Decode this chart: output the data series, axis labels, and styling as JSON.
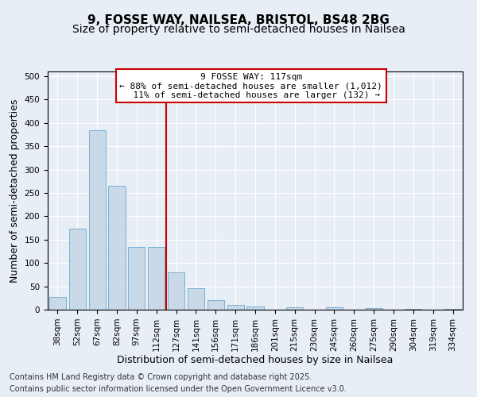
{
  "title_line1": "9, FOSSE WAY, NAILSEA, BRISTOL, BS48 2BG",
  "title_line2": "Size of property relative to semi-detached houses in Nailsea",
  "xlabel": "Distribution of semi-detached houses by size in Nailsea",
  "ylabel": "Number of semi-detached properties",
  "categories": [
    "38sqm",
    "52sqm",
    "67sqm",
    "82sqm",
    "97sqm",
    "112sqm",
    "127sqm",
    "141sqm",
    "156sqm",
    "171sqm",
    "186sqm",
    "201sqm",
    "215sqm",
    "230sqm",
    "245sqm",
    "260sqm",
    "275sqm",
    "290sqm",
    "304sqm",
    "319sqm",
    "334sqm"
  ],
  "values": [
    27,
    173,
    385,
    265,
    135,
    135,
    80,
    46,
    20,
    11,
    6,
    0,
    5,
    0,
    5,
    0,
    3,
    0,
    2,
    0,
    1
  ],
  "bar_color": "#c9d9e8",
  "bar_edge_color": "#7bafd4",
  "vline_x": 5.5,
  "vline_color": "#cc0000",
  "annotation_text": "9 FOSSE WAY: 117sqm\n← 88% of semi-detached houses are smaller (1,012)\n  11% of semi-detached houses are larger (132) →",
  "annotation_box_color": "#cc0000",
  "background_color": "#e8eef5",
  "plot_bg_color": "#e8eef5",
  "ylim": [
    0,
    510
  ],
  "yticks": [
    0,
    50,
    100,
    150,
    200,
    250,
    300,
    350,
    400,
    450,
    500
  ],
  "footer_line1": "Contains HM Land Registry data © Crown copyright and database right 2025.",
  "footer_line2": "Contains public sector information licensed under the Open Government Licence v3.0.",
  "title_fontsize": 11,
  "subtitle_fontsize": 10,
  "axis_label_fontsize": 9,
  "tick_fontsize": 7.5,
  "annotation_fontsize": 8,
  "footer_fontsize": 7
}
